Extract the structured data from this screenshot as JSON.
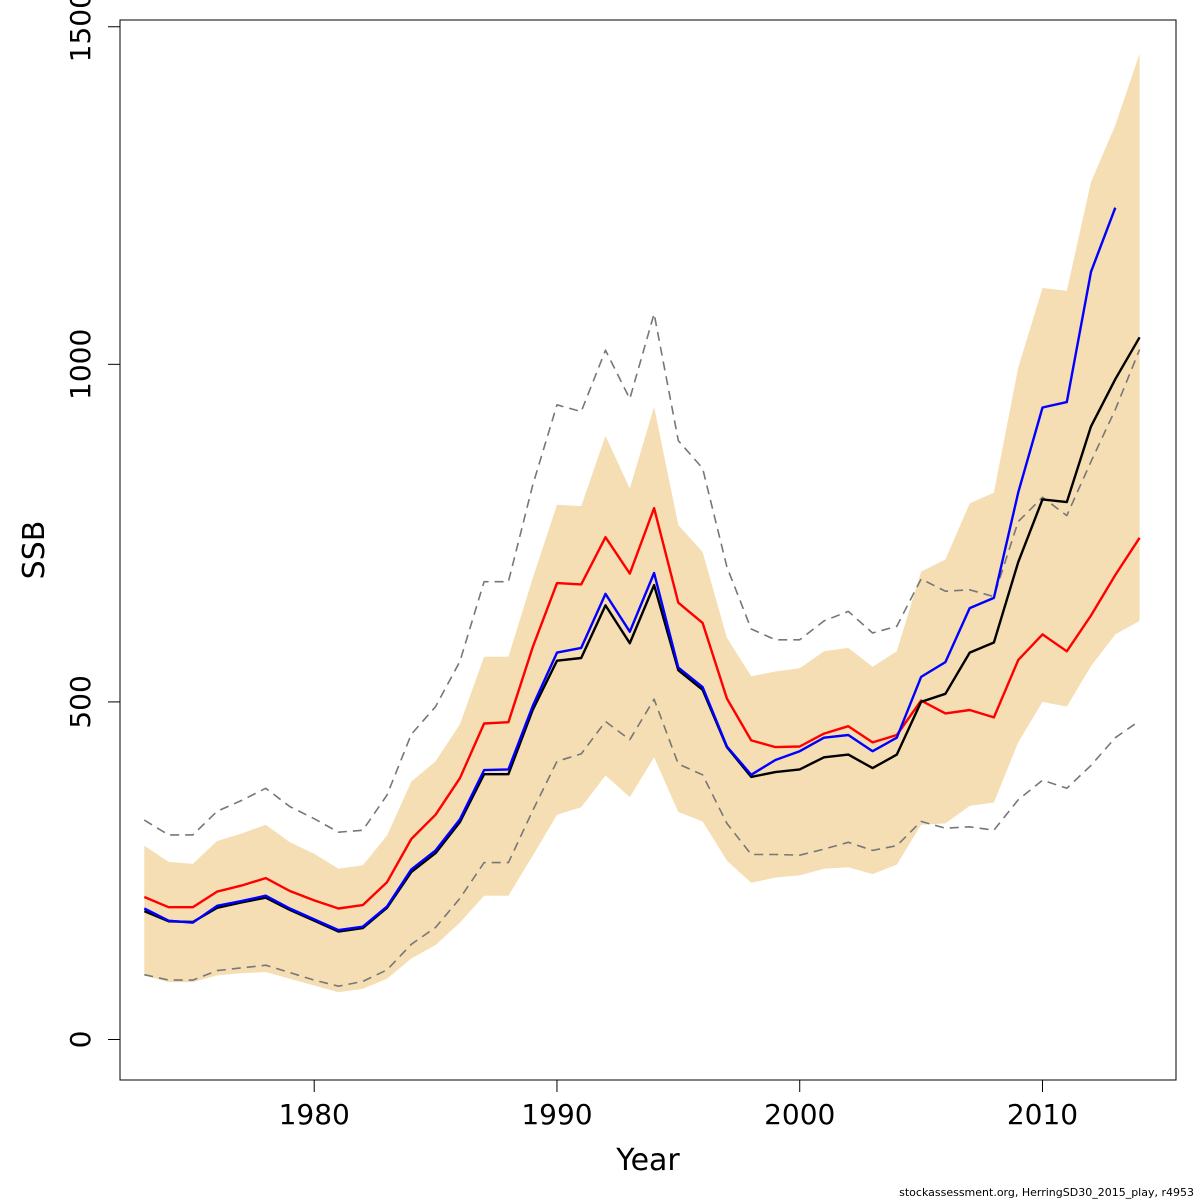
{
  "chart_data": {
    "type": "line",
    "xlabel": "Year",
    "ylabel": "SSB",
    "xlim": [
      1972,
      2015.5
    ],
    "ylim": [
      -60,
      1510
    ],
    "x_ticks": [
      1980,
      1990,
      2000,
      2010
    ],
    "y_ticks": [
      0,
      500,
      1000,
      1500
    ],
    "x_tick_labels": [
      "1980",
      "1990",
      "2000",
      "2010"
    ],
    "y_tick_labels": [
      "0",
      "500",
      "1000",
      "1500"
    ],
    "grid": false,
    "legend": "none",
    "years": [
      1973,
      1974,
      1975,
      1976,
      1977,
      1978,
      1979,
      1980,
      1981,
      1982,
      1983,
      1984,
      1985,
      1986,
      1987,
      1988,
      1989,
      1990,
      1991,
      1992,
      1993,
      1994,
      1995,
      1996,
      1997,
      1998,
      1999,
      2000,
      2001,
      2002,
      2003,
      2004,
      2005,
      2006,
      2007,
      2008,
      2009,
      2010,
      2011,
      2012,
      2013,
      2014
    ],
    "band": {
      "color": "#F5DEB3",
      "upper": [
        287,
        263,
        260,
        294,
        305,
        318,
        292,
        275,
        253,
        258,
        302,
        382,
        412,
        467,
        567,
        567,
        683,
        792,
        790,
        894,
        816,
        937,
        762,
        722,
        595,
        538,
        545,
        550,
        575,
        580,
        552,
        575,
        693,
        711,
        794,
        810,
        995,
        1113,
        1109,
        1270,
        1354,
        1460
      ],
      "lower": [
        95,
        85,
        85,
        95,
        98,
        100,
        90,
        80,
        70,
        75,
        90,
        120,
        140,
        173,
        213,
        213,
        272,
        333,
        344,
        391,
        359,
        418,
        337,
        323,
        265,
        232,
        240,
        243,
        253,
        255,
        245,
        259,
        318,
        320,
        346,
        351,
        440,
        500,
        493,
        553,
        600,
        620
      ]
    },
    "series": [
      {
        "color": "#000000",
        "style": "solid",
        "values": [
          190,
          175,
          174,
          195,
          203,
          210,
          192,
          176,
          160,
          165,
          195,
          248,
          276,
          322,
          393,
          393,
          488,
          561,
          565,
          643,
          587,
          673,
          547,
          518,
          433,
          389,
          396,
          400,
          418,
          422,
          402,
          422,
          500,
          512,
          573,
          588,
          707,
          800,
          796,
          908,
          978,
          1040
        ]
      },
      {
        "color": "#0000FF",
        "style": "solid",
        "values": [
          194,
          176,
          173,
          198,
          205,
          213,
          194,
          178,
          162,
          167,
          197,
          252,
          280,
          326,
          399,
          400,
          494,
          573,
          580,
          660,
          604,
          691,
          551,
          522,
          434,
          392,
          414,
          427,
          447,
          451,
          427,
          447,
          537,
          559,
          639,
          654,
          810,
          936,
          944,
          1137,
          1232,
          null
        ]
      },
      {
        "color": "#FF0000",
        "style": "solid",
        "values": [
          211,
          196,
          196,
          219,
          228,
          239,
          220,
          206,
          194,
          199,
          233,
          297,
          333,
          387,
          468,
          470,
          581,
          676,
          674,
          744,
          690,
          787,
          647,
          617,
          505,
          443,
          433,
          434,
          453,
          464,
          440,
          451,
          502,
          483,
          488,
          477,
          562,
          600,
          575,
          628,
          688,
          743
        ]
      },
      {
        "color": "#777777",
        "style": "dashed",
        "values": [
          325,
          303,
          303,
          338,
          354,
          372,
          345,
          327,
          307,
          310,
          362,
          452,
          493,
          560,
          678,
          678,
          821,
          940,
          930,
          1021,
          949,
          1075,
          887,
          846,
          700,
          608,
          592,
          592,
          620,
          634,
          602,
          612,
          682,
          664,
          666,
          656,
          767,
          803,
          776,
          856,
          933,
          1022
        ]
      },
      {
        "color": "#777777",
        "style": "dashed",
        "values": [
          96,
          88,
          88,
          102,
          106,
          110,
          99,
          88,
          79,
          86,
          103,
          141,
          166,
          209,
          262,
          262,
          339,
          412,
          423,
          471,
          444,
          504,
          408,
          392,
          320,
          274,
          274,
          273,
          282,
          292,
          280,
          287,
          323,
          313,
          315,
          310,
          355,
          384,
          372,
          406,
          447,
          472
        ]
      }
    ]
  },
  "footnote": "stockassessment.org, HerringSD30_2015_play, r4953"
}
